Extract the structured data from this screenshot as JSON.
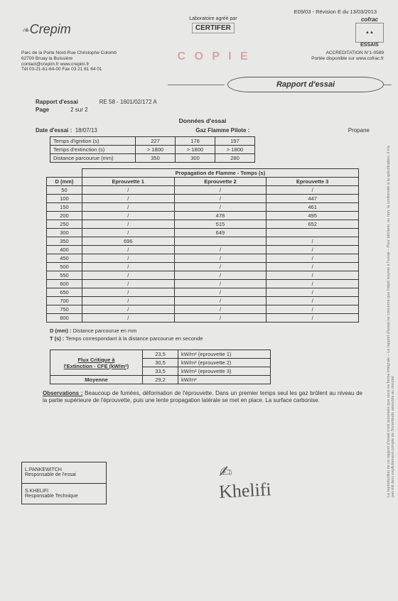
{
  "header": {
    "revision": "E09/03 - Révision E du 13/03/2013",
    "crepim": "Crepim",
    "lab_agree": "Laboratoire agréé par",
    "certifer": "CERTIFER",
    "cofrac": "cofrac",
    "essais": "ESSAIS",
    "addr1": "Parc de la Porte Nord-Rue Christophe Colomb",
    "addr2": "62700 Bruay la Buissière",
    "addr3": "contact@crepim.fr  www.crepim.fr",
    "addr4": "Tél 03-21-61-64-00  Fax 03 21 61 64 01",
    "copie": "C O P I E",
    "accred1": "ACCREDITATION N°1-0589",
    "accred2": "Portée disponible sur www.cofrac.fr",
    "title": "Rapport d'essai"
  },
  "meta": {
    "rapport_label": "Rapport d'essai",
    "rapport_ref": "RE 58 -  1601/02/172 A",
    "page_label": "Page",
    "page_val": "2 sur 2",
    "section": "Données d'essai",
    "date_label": "Date d'essai :",
    "date_val": "18/07/13",
    "gaz_label": "Gaz Flamme Pilote :",
    "gaz_val": "Propane"
  },
  "table_ign": {
    "rows": [
      [
        "Temps d'ignition (s)",
        "227",
        "178",
        "197"
      ],
      [
        "Temps d'extinction (s)",
        "> 1800",
        "> 1800",
        "> 1800"
      ],
      [
        "Distance parcourue (mm)",
        "350",
        "300",
        "280"
      ]
    ]
  },
  "table_prop": {
    "title": "Propagation de Flamme - Temps (s)",
    "head_d": "D (mm)",
    "heads": [
      "Eprouvette 1",
      "Eprouvette 2",
      "Eprouvette 3"
    ],
    "d": [
      "50",
      "100",
      "150",
      "200",
      "250",
      "300",
      "350",
      "400",
      "450",
      "500",
      "550",
      "600",
      "650",
      "700",
      "750",
      "800"
    ],
    "e1": [
      "/",
      "/",
      "/",
      "/",
      "/",
      "/",
      "696",
      "/",
      "/",
      "/",
      "/",
      "/",
      "/",
      "/",
      "/",
      "/"
    ],
    "e2": [
      "/",
      "/",
      "/",
      "478",
      "515",
      "649",
      "",
      "/",
      "/",
      "/",
      "/",
      "/",
      "/",
      "/",
      "/",
      "/"
    ],
    "e3": [
      "/",
      "447",
      "461",
      "495",
      "652",
      "",
      "/",
      "/",
      "/",
      "/",
      "/",
      "/",
      "/",
      "/",
      "/",
      "/"
    ]
  },
  "defs": {
    "d": "D (mm) :",
    "d_txt": "Distance parcourue en mm",
    "t": "T (s) :",
    "t_txt": "Temps correspondant à la distance parcourue en seconde"
  },
  "table_flux": {
    "h1": "Flux Critique à",
    "h2": "l'Extinction - CFE (kW/m²)",
    "rows": [
      [
        "23,5",
        "kW/m² (eprouvette 1)"
      ],
      [
        "30,5",
        "kW/m² (eprouvette 2)"
      ],
      [
        "33,5",
        "kW/m² (eprouvette 3)"
      ]
    ],
    "moy_label": "Moyenne",
    "moy_val": "29,2",
    "moy_unit": "kW/m²"
  },
  "obs": {
    "label": "Observations :",
    "text": "Beaucoup de fumées, déformation de l'éprouvette. Dans un premier temps seul les gaz brûlent au niveau de la partie supérieure de l'éprouvette, puis une lente propagation latérale se met en place. La surface carbonise."
  },
  "sig": {
    "name1": "L.PANKEWITCH",
    "role1": "Responsable de l'essai",
    "name2": "S.KHELIFI",
    "role2": "Responsable Technique"
  },
  "side": "La reproduction de ce rapport d'essai n'est autorisée que sous sa forme intégrale – Le rapport d'essai ne concerne que l'objet soumis à l'essai – Pour déclarer, ou non, la conformité à la spécification, il n'a pas été tenu explicitement compte de l'incertitude associée au résultat"
}
